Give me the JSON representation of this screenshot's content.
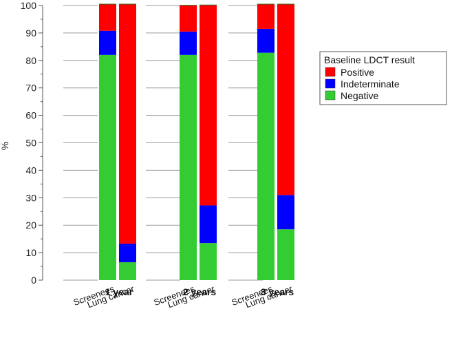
{
  "chart_data": {
    "type": "bar",
    "stacked": true,
    "title": "",
    "xlabel": "",
    "ylabel": "%",
    "ylim": [
      0,
      100
    ],
    "yticks": [
      0,
      10,
      20,
      30,
      40,
      50,
      60,
      70,
      80,
      90,
      100
    ],
    "groups": [
      "1 year",
      "2 years",
      "3 years"
    ],
    "categories": [
      "Screenees",
      "Lung cancer"
    ],
    "legend": {
      "title": "Baseline LDCT result",
      "position": "right",
      "entries": [
        "Positive",
        "Indeterminate",
        "Negative"
      ]
    },
    "series": [
      {
        "name": "Negative",
        "color": "#33cc33",
        "values": [
          [
            82,
            6.5
          ],
          [
            82,
            13.5
          ],
          [
            82.8,
            18.5
          ]
        ]
      },
      {
        "name": "Indeterminate",
        "color": "#0000ff",
        "values": [
          [
            8.8,
            6.8
          ],
          [
            8.5,
            13.7
          ],
          [
            8.7,
            12.5
          ]
        ]
      },
      {
        "name": "Positive",
        "color": "#ff0000",
        "values": [
          [
            9.7,
            87.2
          ],
          [
            9.6,
            73.0
          ],
          [
            9.0,
            69.5
          ]
        ]
      }
    ]
  }
}
